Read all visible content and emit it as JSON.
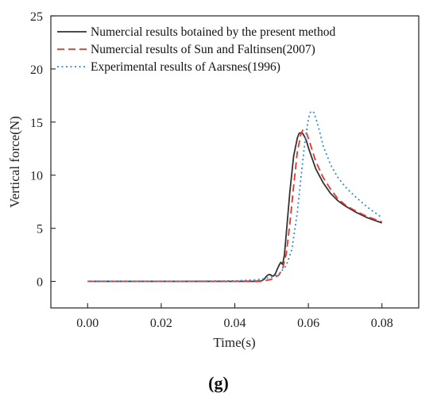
{
  "chart_data": {
    "type": "line",
    "panel_label": "(g)",
    "xlabel": "Time(s)",
    "ylabel": "Vertical force(N)",
    "xlim": [
      -0.01,
      0.09
    ],
    "ylim": [
      -2.5,
      25
    ],
    "xticks": [
      0.0,
      0.02,
      0.04,
      0.06,
      0.08
    ],
    "xtick_labels": [
      "0.00",
      "0.02",
      "0.04",
      "0.06",
      "0.08"
    ],
    "yticks": [
      0,
      5,
      10,
      15,
      20,
      25
    ],
    "ytick_labels": [
      "0",
      "5",
      "10",
      "15",
      "20",
      "25"
    ],
    "grid": false,
    "legend_position": "top-left",
    "series": [
      {
        "name": "Numercial results botained by the present method",
        "color": "#333333",
        "style": "solid",
        "x": [
          0.0,
          0.02,
          0.04,
          0.047,
          0.048,
          0.0485,
          0.049,
          0.0495,
          0.05,
          0.0505,
          0.051,
          0.0515,
          0.052,
          0.0525,
          0.053,
          0.0535,
          0.054,
          0.055,
          0.056,
          0.057,
          0.0575,
          0.058,
          0.0585,
          0.059,
          0.0595,
          0.06,
          0.061,
          0.062,
          0.064,
          0.066,
          0.068,
          0.07,
          0.073,
          0.076,
          0.08
        ],
        "y": [
          0,
          0,
          0,
          0,
          0.2,
          0.45,
          0.6,
          0.65,
          0.55,
          0.5,
          0.7,
          1.1,
          1.5,
          1.8,
          1.6,
          2.5,
          4.5,
          8.5,
          11.8,
          13.5,
          13.95,
          14.0,
          13.9,
          13.6,
          13.2,
          12.6,
          11.6,
          10.6,
          9.3,
          8.3,
          7.6,
          7.1,
          6.5,
          6.0,
          5.5
        ]
      },
      {
        "name": "Numercial results of Sun and Faltinsen(2007)",
        "color": "#e8342a",
        "style": "dashed",
        "x": [
          0.0,
          0.02,
          0.04,
          0.048,
          0.05,
          0.052,
          0.053,
          0.054,
          0.055,
          0.056,
          0.057,
          0.058,
          0.0585,
          0.059,
          0.0595,
          0.06,
          0.061,
          0.062,
          0.064,
          0.066,
          0.068,
          0.07,
          0.073,
          0.076,
          0.08
        ],
        "y": [
          0,
          0,
          0,
          0.05,
          0.2,
          0.6,
          1.2,
          2.6,
          5.5,
          9.0,
          12.2,
          13.9,
          14.25,
          14.2,
          13.95,
          13.5,
          12.4,
          11.3,
          9.8,
          8.7,
          7.8,
          7.2,
          6.6,
          6.1,
          5.6
        ]
      },
      {
        "name": "Experimental results of Aarsnes(1996)",
        "color": "#2c8fd6",
        "style": "dotted",
        "x": [
          0.0,
          0.02,
          0.04,
          0.046,
          0.048,
          0.05,
          0.052,
          0.054,
          0.0555,
          0.057,
          0.058,
          0.059,
          0.06,
          0.0605,
          0.061,
          0.0615,
          0.062,
          0.063,
          0.064,
          0.066,
          0.068,
          0.07,
          0.073,
          0.076,
          0.08
        ],
        "y": [
          0,
          0,
          0.05,
          0.15,
          0.25,
          0.4,
          0.7,
          1.5,
          3.0,
          6.5,
          9.8,
          13.0,
          15.3,
          15.9,
          16.05,
          15.9,
          15.4,
          14.2,
          12.8,
          11.0,
          9.8,
          8.9,
          7.9,
          7.0,
          6.0
        ]
      }
    ]
  }
}
